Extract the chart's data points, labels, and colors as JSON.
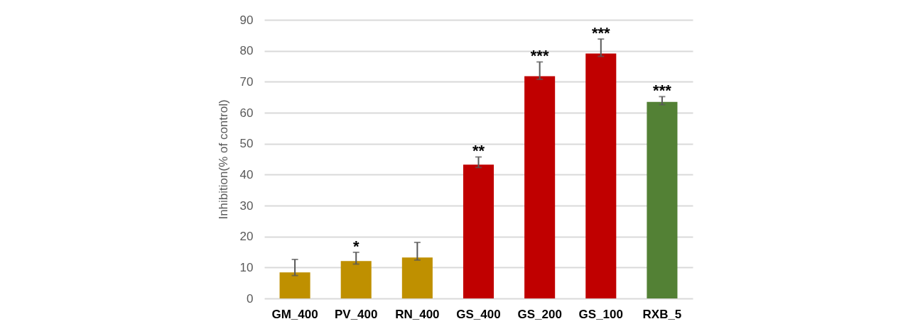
{
  "chart_data": {
    "type": "bar",
    "ylabel": "Inhibition(% of control)",
    "categories": [
      "GM_400",
      "PV_400",
      "RN_400",
      "GS_400",
      "GS_200",
      "GS_100",
      "RXB_5"
    ],
    "values": [
      8.4,
      12.1,
      13.2,
      43.2,
      71.8,
      79.1,
      63.5
    ],
    "colors": [
      "#bf9000",
      "#bf9000",
      "#bf9000",
      "#c00000",
      "#c00000",
      "#c00000",
      "#538135"
    ],
    "errors": [
      [
        7.4,
        12.6
      ],
      [
        11.1,
        14.9
      ],
      [
        12.4,
        18.1
      ],
      [
        42.3,
        45.7
      ],
      [
        70.8,
        76.4
      ],
      [
        78.2,
        83.8
      ],
      [
        62.6,
        65.2
      ]
    ],
    "ylim": [
      0,
      90
    ],
    "yticks": [
      0,
      10,
      20,
      30,
      40,
      50,
      60,
      70,
      80,
      90
    ],
    "grid": "y",
    "annotations": [
      {
        "text": "*",
        "x": "PV_400",
        "y": 14.9
      },
      {
        "text": "**",
        "x": "GS_400",
        "y": 45.7
      },
      {
        "text": "***",
        "x": "GS_200",
        "y": 76.4
      },
      {
        "text": "***",
        "x": "GS_100",
        "y": 83.8
      },
      {
        "text": "***",
        "x": "RXB_5",
        "y": 65.2
      }
    ]
  }
}
